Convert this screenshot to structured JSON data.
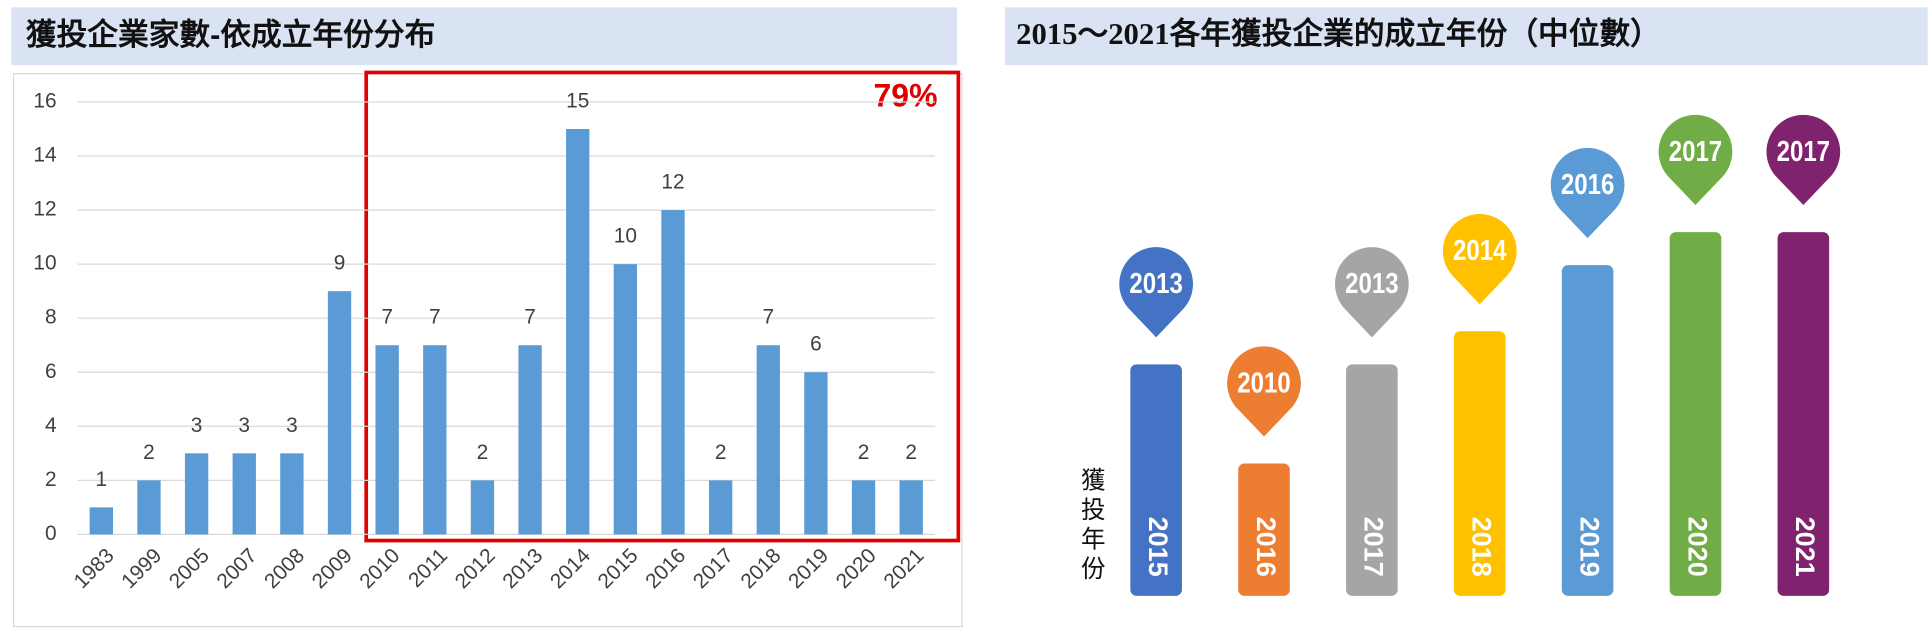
{
  "chart_data": [
    {
      "type": "bar",
      "title": "獲投企業家數-依成立年份分布",
      "categories": [
        "1983",
        "1999",
        "2005",
        "2007",
        "2008",
        "2009",
        "2010",
        "2011",
        "2012",
        "2013",
        "2014",
        "2015",
        "2016",
        "2017",
        "2018",
        "2019",
        "2020",
        "2021"
      ],
      "values": [
        1,
        2,
        3,
        3,
        3,
        9,
        7,
        7,
        2,
        7,
        15,
        10,
        12,
        2,
        7,
        6,
        2,
        2
      ],
      "color": "#5b9bd5",
      "ylim": [
        0,
        16
      ],
      "yticks": [
        0,
        2,
        4,
        6,
        8,
        10,
        12,
        14,
        16
      ],
      "grid": true,
      "annotation": "79%"
    },
    {
      "type": "pin",
      "title": "2015～2021各年獲投企業的成立年份（中位數）",
      "y_label": "獲投年份",
      "categories": [
        "2015",
        "2016",
        "2017",
        "2018",
        "2019",
        "2020",
        "2021"
      ],
      "values": [
        2013,
        2010,
        2013,
        2014,
        2016,
        2017,
        2017
      ],
      "colors": [
        "#4472c4",
        "#ed7d31",
        "#a5a5a5",
        "#ffc000",
        "#5b9bd5",
        "#70ad47",
        "#80236f"
      ],
      "ylim": [
        2006,
        2018
      ]
    }
  ]
}
